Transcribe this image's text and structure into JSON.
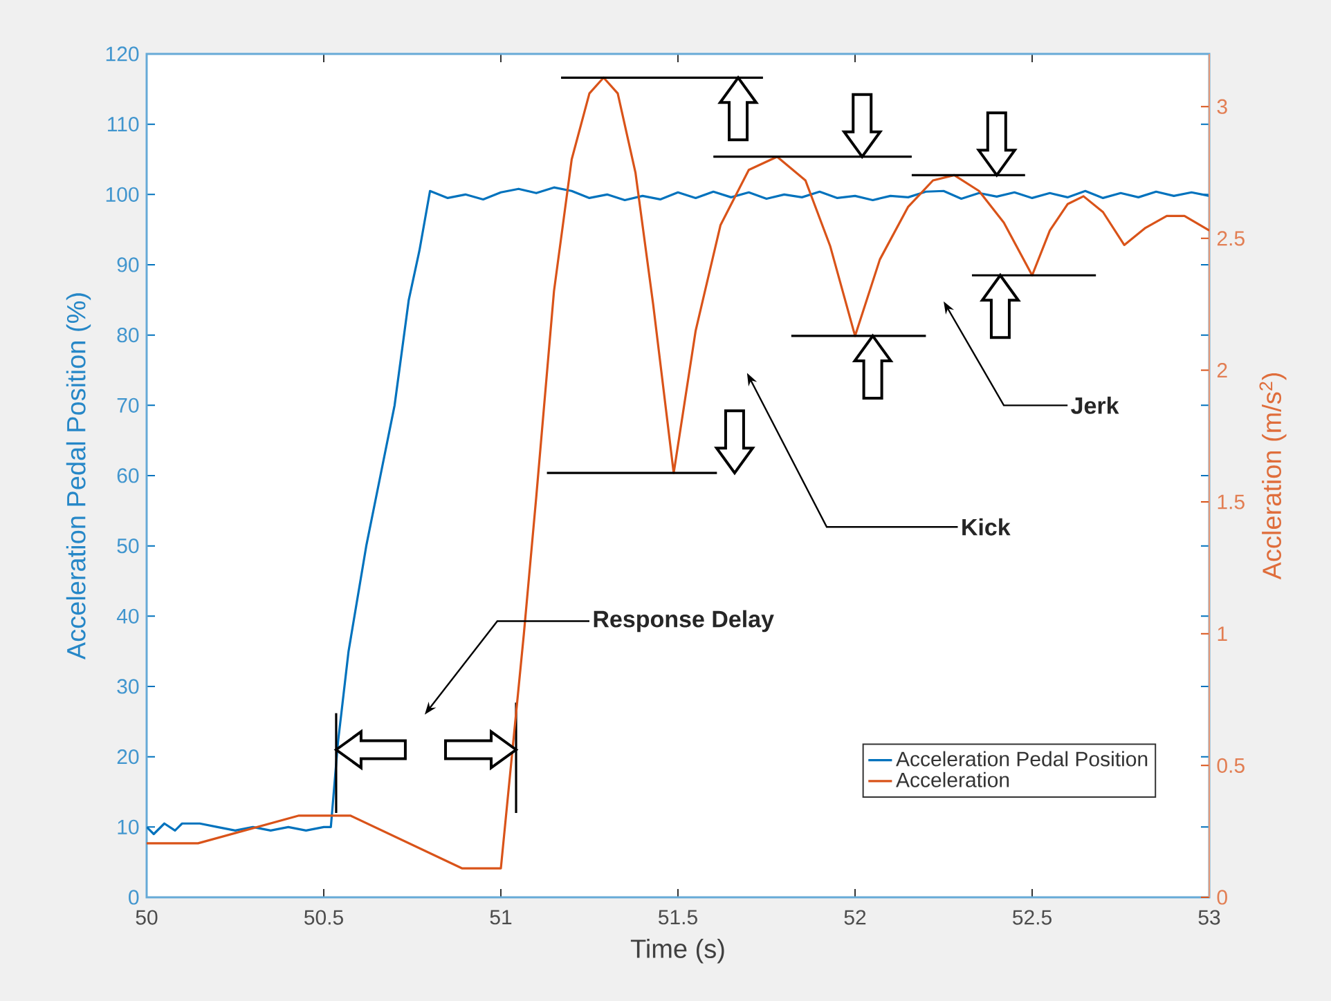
{
  "chart_data": {
    "type": "line",
    "xlabel": "Time (s)",
    "ylabel": "Acceleration Pedal Position (%)",
    "y2label": "Accleration (m/s$^{2}$)",
    "xlim": [
      50,
      53
    ],
    "xticks": [
      50,
      50.5,
      51,
      51.5,
      52,
      52.5,
      53
    ],
    "ylim": [
      0,
      120
    ],
    "yticks": [
      0,
      10,
      20,
      30,
      40,
      50,
      60,
      70,
      80,
      90,
      100,
      110,
      120
    ],
    "y2lim": [
      0,
      3.2
    ],
    "y2ticks": [
      0,
      0.5,
      1,
      1.5,
      2,
      2.5,
      3
    ],
    "legend": "bottom right",
    "annotations": [
      "Response Delay",
      "Kick",
      "Jerk"
    ],
    "series": [
      {
        "name": "Acceleration Pedal Position",
        "color": "#0072bd",
        "x": [
          50,
          50.02,
          50.05,
          50.08,
          50.1,
          50.15,
          50.2,
          50.25,
          50.3,
          50.35,
          50.4,
          50.45,
          50.5,
          50.52,
          50.54,
          50.57,
          50.62,
          50.66,
          50.7,
          50.74,
          50.77,
          50.8,
          50.85,
          50.9,
          50.95,
          51.0,
          51.05,
          51.1,
          51.15,
          51.2,
          51.25,
          51.3,
          51.35,
          51.4,
          51.45,
          51.5,
          51.55,
          51.6,
          51.65,
          51.7,
          51.75,
          51.8,
          51.85,
          51.9,
          51.95,
          52.0,
          52.05,
          52.1,
          52.15,
          52.2,
          52.25,
          52.3,
          52.35,
          52.4,
          52.45,
          52.5,
          52.55,
          52.6,
          52.65,
          52.7,
          52.75,
          52.8,
          52.85,
          52.9,
          52.95,
          53
        ],
        "values": [
          10,
          9,
          10.5,
          9.5,
          10.5,
          10.5,
          10,
          9.5,
          10,
          9.5,
          10,
          9.5,
          10,
          10,
          22,
          35,
          50,
          60,
          70,
          85,
          92,
          100.5,
          99.5,
          100,
          99.3,
          100.3,
          100.8,
          100.2,
          101,
          100.5,
          99.5,
          100,
          99.2,
          99.8,
          99.3,
          100.3,
          99.5,
          100.4,
          99.6,
          100.3,
          99.4,
          100,
          99.6,
          100.4,
          99.5,
          99.8,
          99.2,
          99.8,
          99.6,
          100.4,
          100.5,
          99.4,
          100.2,
          99.7,
          100.3,
          99.5,
          100.2,
          99.6,
          100.5,
          99.5,
          100.2,
          99.6,
          100.4,
          99.8,
          100.3,
          99.8
        ]
      },
      {
        "name": "Acceleration",
        "color": "#d95319",
        "axis": "y2",
        "x": [
          50,
          50.145,
          50.43,
          50.575,
          50.89,
          51.0,
          51.065,
          51.1,
          51.15,
          51.2,
          51.25,
          51.29,
          51.33,
          51.38,
          51.43,
          51.488,
          51.55,
          51.62,
          51.7,
          51.78,
          51.86,
          51.93,
          52.0,
          52.07,
          52.15,
          52.22,
          52.28,
          52.35,
          52.42,
          52.5,
          52.55,
          52.6,
          52.645,
          52.7,
          52.76,
          52.82,
          52.88,
          52.93,
          53
        ],
        "values": [
          0.205,
          0.205,
          0.31,
          0.31,
          0.11,
          0.11,
          1.0,
          1.52,
          2.3,
          2.8,
          3.05,
          3.11,
          3.05,
          2.75,
          2.25,
          1.61,
          2.15,
          2.55,
          2.76,
          2.81,
          2.72,
          2.47,
          2.13,
          2.42,
          2.62,
          2.72,
          2.74,
          2.68,
          2.56,
          2.36,
          2.53,
          2.63,
          2.66,
          2.6,
          2.475,
          2.54,
          2.585,
          2.585,
          2.53
        ]
      },
      {
        "color": "#000000",
        "axis": "y2",
        "x": [
          51.17,
          51.74
        ],
        "values": [
          3.11,
          3.11
        ]
      },
      {
        "color": "#000000",
        "axis": "y2",
        "x": [
          51.13,
          51.61
        ],
        "values": [
          1.61,
          1.61
        ]
      },
      {
        "color": "#000000",
        "axis": "y2",
        "x": [
          51.6,
          52.16
        ],
        "values": [
          2.81,
          2.81
        ]
      },
      {
        "color": "#000000",
        "axis": "y2",
        "x": [
          51.82,
          52.2
        ],
        "values": [
          2.13,
          2.13
        ]
      },
      {
        "color": "#000000",
        "axis": "y2",
        "x": [
          52.16,
          52.48
        ],
        "values": [
          2.74,
          2.74
        ]
      },
      {
        "color": "#000000",
        "axis": "y2",
        "x": [
          52.33,
          52.68
        ],
        "values": [
          2.36,
          2.36
        ]
      },
      {
        "color": "#000000",
        "x": [
          50.535,
          50.535
        ],
        "values": [
          12,
          26.2
        ]
      },
      {
        "color": "#000000",
        "x": [
          51.043,
          51.043
        ],
        "values": [
          12,
          27.7
        ]
      }
    ]
  }
}
